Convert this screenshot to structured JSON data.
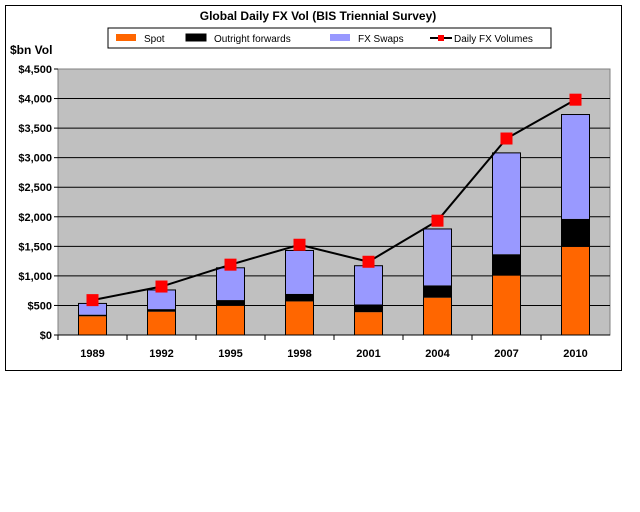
{
  "chart_data": {
    "type": "bar",
    "title": "Global Daily FX Vol (BIS Triennial Survey)",
    "ylabel": "$bn Vol",
    "xlabel": "",
    "ylim": [
      0,
      4500
    ],
    "yticks": [
      "$0",
      "$500",
      "$1,000",
      "$1,500",
      "$2,000",
      "$2,500",
      "$3,000",
      "$3,500",
      "$4,000",
      "$4,500"
    ],
    "ytick_values": [
      0,
      500,
      1000,
      1500,
      2000,
      2500,
      3000,
      3500,
      4000,
      4500
    ],
    "categories": [
      "1989",
      "1992",
      "1995",
      "1998",
      "2001",
      "2004",
      "2007",
      "2010"
    ],
    "stacked": true,
    "grid": true,
    "legend_position": "top",
    "series": [
      {
        "name": "Spot",
        "type": "bar",
        "color": "#ff6600",
        "values": [
          317,
          394,
          494,
          568,
          386,
          631,
          1005,
          1490
        ]
      },
      {
        "name": "Outright forwards",
        "type": "bar",
        "color": "#000000",
        "values": [
          27,
          44,
          97,
          128,
          130,
          209,
          362,
          475
        ]
      },
      {
        "name": "FX Swaps",
        "type": "bar",
        "color": "#9999ff",
        "values": [
          190,
          324,
          546,
          734,
          656,
          954,
          1714,
          1765
        ]
      },
      {
        "name": "Daily FX Volumes",
        "type": "line",
        "color": "#000000",
        "marker_color": "#ff0000",
        "values": [
          590,
          820,
          1190,
          1527,
          1239,
          1934,
          3324,
          3981
        ]
      }
    ]
  }
}
